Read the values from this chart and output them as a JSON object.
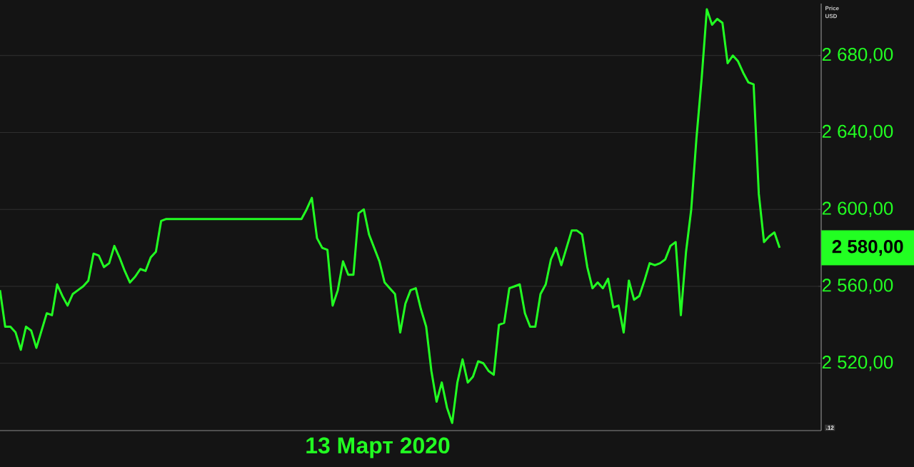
{
  "chart_data": {
    "type": "line",
    "xlabel": "13 Март 2020",
    "ylabel": "Price USD",
    "categories": [
      null,
      null,
      null,
      null,
      null,
      null,
      null,
      null,
      null,
      null,
      null,
      null,
      null,
      null,
      null,
      null,
      null,
      null,
      null,
      null,
      null,
      null,
      null,
      null,
      null,
      null,
      null,
      null,
      null,
      null,
      null,
      null,
      null,
      null,
      null,
      null,
      null,
      null,
      null,
      null,
      null,
      null,
      null,
      null,
      null,
      null,
      null,
      null,
      null,
      null,
      null,
      null,
      null,
      null,
      null,
      null,
      null,
      null,
      null,
      null,
      null,
      null,
      null,
      null,
      null,
      null,
      null,
      null,
      null,
      null,
      null,
      null,
      null,
      null,
      null,
      null,
      null,
      null,
      null,
      null,
      null,
      null,
      null,
      null,
      null,
      null,
      null,
      null,
      null,
      null,
      null,
      null,
      null,
      null,
      null,
      null,
      null,
      null,
      null,
      null,
      null,
      null,
      null,
      null,
      null,
      null,
      null,
      null,
      null,
      null,
      null,
      null,
      null,
      null,
      null,
      null,
      null,
      null,
      null,
      null,
      null,
      null,
      null,
      null,
      null,
      null,
      null,
      null,
      null,
      null,
      null,
      null,
      null,
      null,
      null,
      null,
      null,
      null,
      null,
      null,
      null,
      null,
      null,
      null,
      null,
      null,
      null,
      null,
      null,
      null,
      null
    ],
    "values": [
      2558,
      2539,
      2539,
      2536,
      2527,
      2539,
      2537,
      2528,
      2537,
      2546,
      2545,
      2561,
      2555,
      2550,
      2556,
      2558,
      2560,
      2563,
      2577,
      2576,
      2570,
      2572,
      2581,
      2575,
      2568,
      2562,
      2565,
      2569,
      2568,
      2575,
      2578,
      2594,
      2595,
      2595,
      2595,
      2595,
      2595,
      2595,
      2595,
      2595,
      2595,
      2595,
      2595,
      2595,
      2595,
      2595,
      2595,
      2595,
      2595,
      2595,
      2595,
      2595,
      2595,
      2595,
      2595,
      2595,
      2595,
      2595,
      2595,
      2600,
      2606,
      2585,
      2580,
      2579,
      2550,
      2558,
      2573,
      2566,
      2566,
      2598,
      2600,
      2587,
      2580,
      2573,
      2562,
      2559,
      2556,
      2536,
      2551,
      2558,
      2559,
      2548,
      2539,
      2516,
      2500,
      2510,
      2497,
      2489,
      2510,
      2522,
      2510,
      2513,
      2521,
      2520,
      2516,
      2514,
      2540,
      2541,
      2559,
      2560,
      2561,
      2546,
      2539,
      2539,
      2556,
      2561,
      2574,
      2580,
      2571,
      2580,
      2589,
      2589,
      2587,
      2570,
      2559,
      2562,
      2559,
      2564,
      2549,
      2550,
      2536,
      2563,
      2553,
      2555,
      2563,
      2572,
      2571,
      2572,
      2574,
      2581,
      2583,
      2545,
      2578,
      2600,
      2637,
      2668,
      2704,
      2696,
      2699,
      2697,
      2676,
      2680,
      2677,
      2671,
      2666,
      2665,
      2608,
      2583,
      2586,
      2588,
      2580
    ],
    "color": "#22ff22",
    "ylim": [
      2485,
      2707
    ],
    "yticks": [
      {
        "value": 2520,
        "label": "2 520,00"
      },
      {
        "value": 2560,
        "label": "2 560,00"
      },
      {
        "value": 2600,
        "label": "2 600,00"
      },
      {
        "value": 2640,
        "label": "2 640,00"
      },
      {
        "value": 2680,
        "label": "2 680,00"
      }
    ],
    "tick_labels": "y",
    "grid": "y",
    "marker": "none",
    "line_style": "solid",
    "annotations": [
      "2 580,00",
      ".12"
    ]
  }
}
